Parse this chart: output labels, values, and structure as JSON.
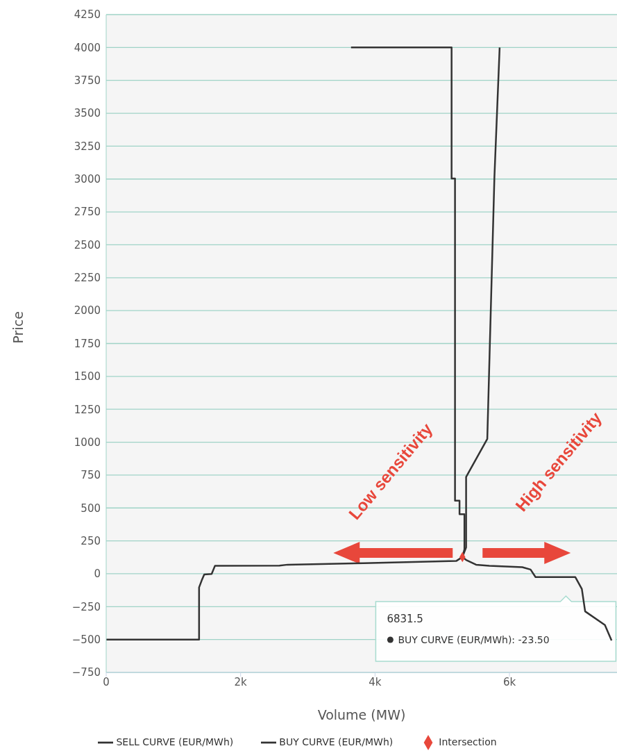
{
  "chart_data": {
    "type": "line",
    "xlabel": "Volume (MW)",
    "ylabel": "Price",
    "xlim": [
      0,
      7600
    ],
    "xticks": [
      0,
      {
        "value": 2000,
        "label": "2k"
      },
      {
        "value": 4000,
        "label": "4k"
      },
      {
        "value": 6000,
        "label": "6k"
      }
    ],
    "ylim": [
      -750,
      4250
    ],
    "yticks": [
      -750,
      -500,
      -250,
      0,
      250,
      500,
      750,
      1000,
      1250,
      1500,
      1750,
      2000,
      2250,
      2500,
      2750,
      3000,
      3250,
      3500,
      3750,
      4000,
      4250
    ],
    "grid": "y",
    "legend": "bottom",
    "marker": "none",
    "line_style": "solid",
    "series": [
      {
        "name": "SELL CURVE (EUR/MWh)",
        "color": "#333333",
        "x": [
          0,
          1382,
          1382,
          1421,
          1459,
          1569,
          1619,
          2578,
          2700,
          3832,
          5208,
          5300,
          5355,
          5355,
          5670,
          5776,
          5854
        ],
        "values": [
          -500,
          -500,
          -104,
          -51,
          -5,
          -2,
          61,
          62,
          69,
          80,
          97,
          127,
          200,
          736,
          1025,
          3012,
          4000
        ]
      },
      {
        "name": "BUY CURVE (EUR/MWh)",
        "color": "#333333",
        "x": [
          3643,
          5139,
          5139,
          5190,
          5190,
          5257,
          5257,
          5330,
          5330,
          5300,
          5355,
          5503,
          5700,
          6191,
          6314,
          6388,
          6979,
          7077,
          7126,
          7420,
          7519
        ],
        "values": [
          4000,
          4000,
          3004,
          3004,
          556,
          556,
          452,
          452,
          185,
          127,
          105,
          69,
          60,
          50,
          32,
          -25,
          -25,
          -116,
          -286,
          -390,
          -507
        ]
      },
      {
        "name": "Intersection",
        "type": "scatter",
        "marker": "diamond",
        "color": "#e8473b",
        "x": [
          5300
        ],
        "values": [
          127
        ]
      }
    ],
    "annotations": [
      "Low sensitivity",
      "High sensitivity",
      "6831.5",
      "BUY CURVE (EUR/MWh): -23.50"
    ]
  }
}
